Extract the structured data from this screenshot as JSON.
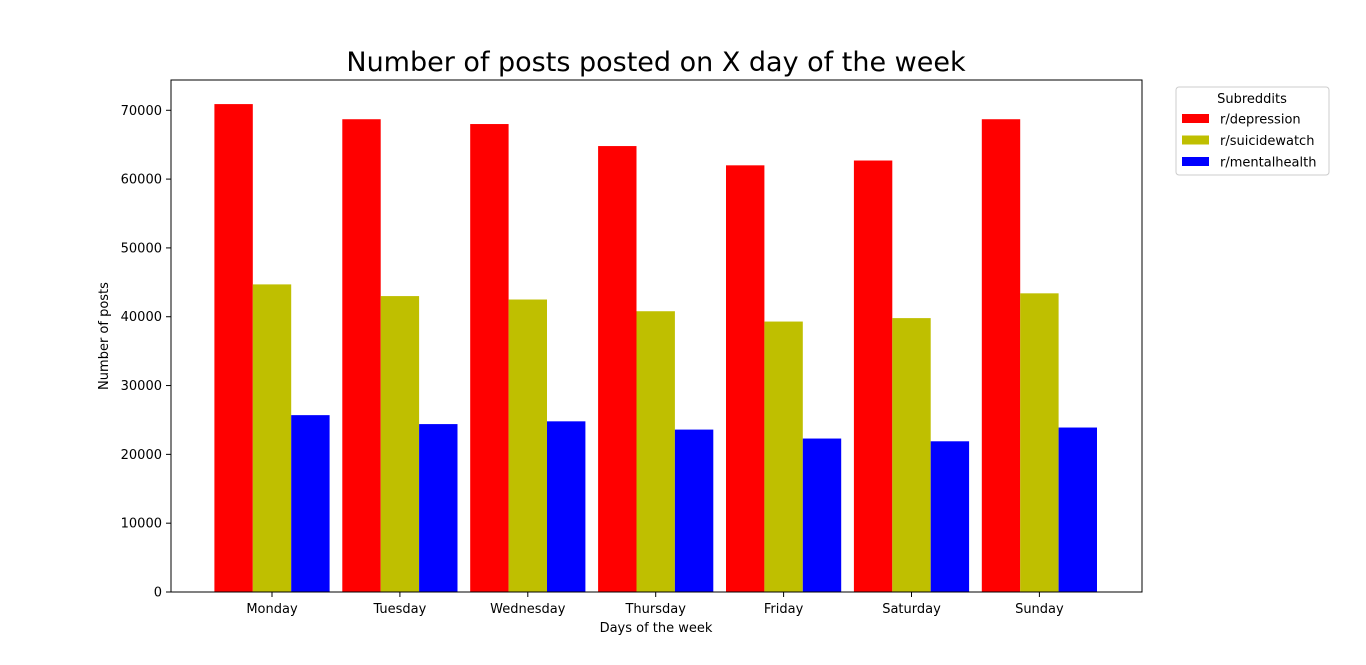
{
  "chart_data": {
    "type": "bar",
    "title": "Number of posts posted on X day of the week",
    "xlabel": "Days of the week",
    "ylabel": "Number of posts",
    "categories": [
      "Monday",
      "Tuesday",
      "Wednesday",
      "Thursday",
      "Friday",
      "Saturday",
      "Sunday"
    ],
    "series": [
      {
        "name": "r/depression",
        "color": "#ff0000",
        "values": [
          70900,
          68700,
          68000,
          64800,
          62000,
          62700,
          68700
        ]
      },
      {
        "name": "r/suicidewatch",
        "color": "#bfbf00",
        "values": [
          44700,
          43000,
          42500,
          40800,
          39300,
          39800,
          43400
        ]
      },
      {
        "name": "r/mentalhealth",
        "color": "#0000ff",
        "values": [
          25700,
          24400,
          24800,
          23600,
          22300,
          21900,
          23900
        ]
      }
    ],
    "ylim": [
      0,
      74400
    ],
    "yticks": [
      0,
      10000,
      20000,
      30000,
      40000,
      50000,
      60000,
      70000
    ],
    "grid": false,
    "legend": {
      "title": "Subreddits",
      "position": "outside-top-right"
    }
  }
}
